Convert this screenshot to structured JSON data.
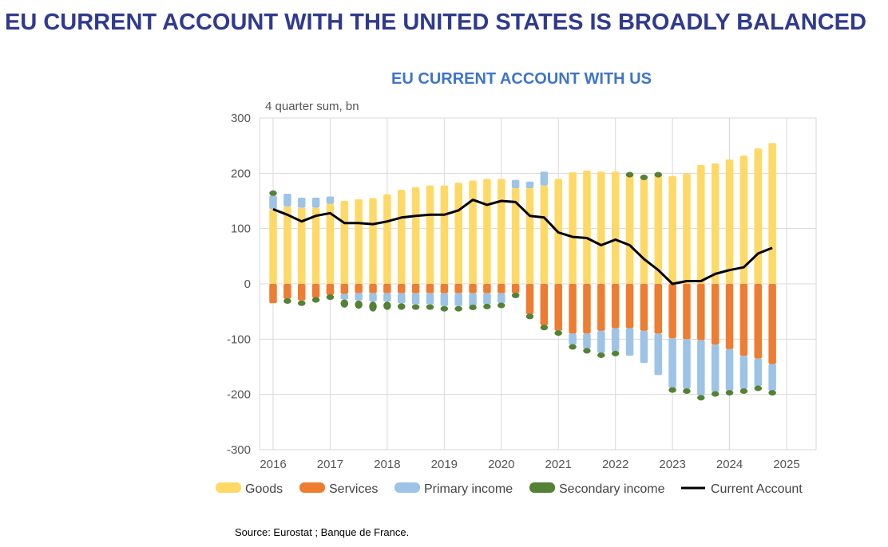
{
  "headline": "EU CURRENT ACCOUNT WITH THE UNITED STATES IS BROADLY BALANCED",
  "source": "Source: Eurostat ; Banque de France.",
  "colors": {
    "headline": "#2F3A8F",
    "chart_title": "#3F74C8",
    "goods": "#FFD966",
    "services": "#ED7D31",
    "primary_income": "#9DC3E6",
    "secondary_income": "#548235",
    "current_account": "#000000",
    "grid": "#D9D9D9"
  },
  "chart_data": {
    "type": "bar",
    "title": "EU CURRENT ACCOUNT WITH US",
    "unit_label": "4 quarter sum, bn",
    "ylim": [
      -300,
      300
    ],
    "yticks": [
      300,
      200,
      100,
      0,
      -100,
      -200,
      -300
    ],
    "x_tick_labels": [
      "2016",
      "2017",
      "2018",
      "2019",
      "2020",
      "2021",
      "2022",
      "2023",
      "2024",
      "2025"
    ],
    "x_range": [
      2016,
      2025
    ],
    "grid": true,
    "legend_position": "bottom",
    "legend": [
      "Goods",
      "Services",
      "Primary income",
      "Secondary income",
      "Current Account"
    ],
    "quarters": [
      2016.0,
      2016.25,
      2016.5,
      2016.75,
      2017.0,
      2017.25,
      2017.5,
      2017.75,
      2018.0,
      2018.25,
      2018.5,
      2018.75,
      2019.0,
      2019.25,
      2019.5,
      2019.75,
      2020.0,
      2020.25,
      2020.5,
      2020.75,
      2021.0,
      2021.25,
      2021.5,
      2021.75,
      2022.0,
      2022.25,
      2022.5,
      2022.75,
      2023.0,
      2023.25,
      2023.5,
      2023.75,
      2024.0,
      2024.25,
      2024.5,
      2024.75,
      2025.0
    ],
    "series": [
      {
        "name": "Goods",
        "type": "bar",
        "values": [
          135,
          140,
          138,
          138,
          145,
          150,
          153,
          155,
          162,
          170,
          175,
          178,
          178,
          183,
          187,
          190,
          190,
          173,
          173,
          178,
          190,
          202,
          205,
          203,
          203,
          195,
          190,
          195,
          195,
          200,
          215,
          218,
          225,
          232,
          245,
          255,
          0
        ]
      },
      {
        "name": "Services",
        "type": "bar",
        "values": [
          -35,
          -27,
          -30,
          -25,
          -20,
          -18,
          -17,
          -17,
          -17,
          -17,
          -17,
          -17,
          -17,
          -17,
          -17,
          -17,
          -17,
          -17,
          -55,
          -75,
          -85,
          -90,
          -90,
          -85,
          -80,
          -80,
          -85,
          -90,
          -98,
          -100,
          -102,
          -110,
          -118,
          -130,
          -135,
          -145,
          0
        ]
      },
      {
        "name": "Primary income",
        "type": "bar",
        "values": [
          25,
          23,
          18,
          18,
          13,
          -10,
          -13,
          -15,
          -15,
          -18,
          -20,
          -20,
          -23,
          -23,
          -23,
          -20,
          -18,
          15,
          12,
          25,
          0,
          -20,
          -27,
          -40,
          -42,
          -50,
          -58,
          -75,
          -90,
          -90,
          -100,
          -85,
          -75,
          -60,
          -50,
          -48,
          0
        ]
      },
      {
        "name": "Secondary income",
        "type": "bar",
        "values": [
          8,
          -8,
          -10,
          -8,
          -8,
          -15,
          -15,
          -18,
          -15,
          -12,
          -10,
          -10,
          -10,
          -10,
          -5,
          -8,
          -8,
          -8,
          -8,
          -8,
          -8,
          -8,
          -8,
          -8,
          -8,
          5,
          5,
          5,
          -8,
          -8,
          -8,
          -8,
          -8,
          -8,
          -8,
          -8,
          0
        ]
      },
      {
        "name": "Current Account",
        "type": "line",
        "values": [
          135,
          125,
          113,
          123,
          128,
          110,
          110,
          108,
          113,
          120,
          123,
          125,
          125,
          133,
          152,
          143,
          150,
          148,
          123,
          120,
          93,
          85,
          83,
          70,
          80,
          70,
          45,
          25,
          0,
          5,
          5,
          18,
          25,
          30,
          55,
          65,
          null
        ]
      }
    ]
  }
}
